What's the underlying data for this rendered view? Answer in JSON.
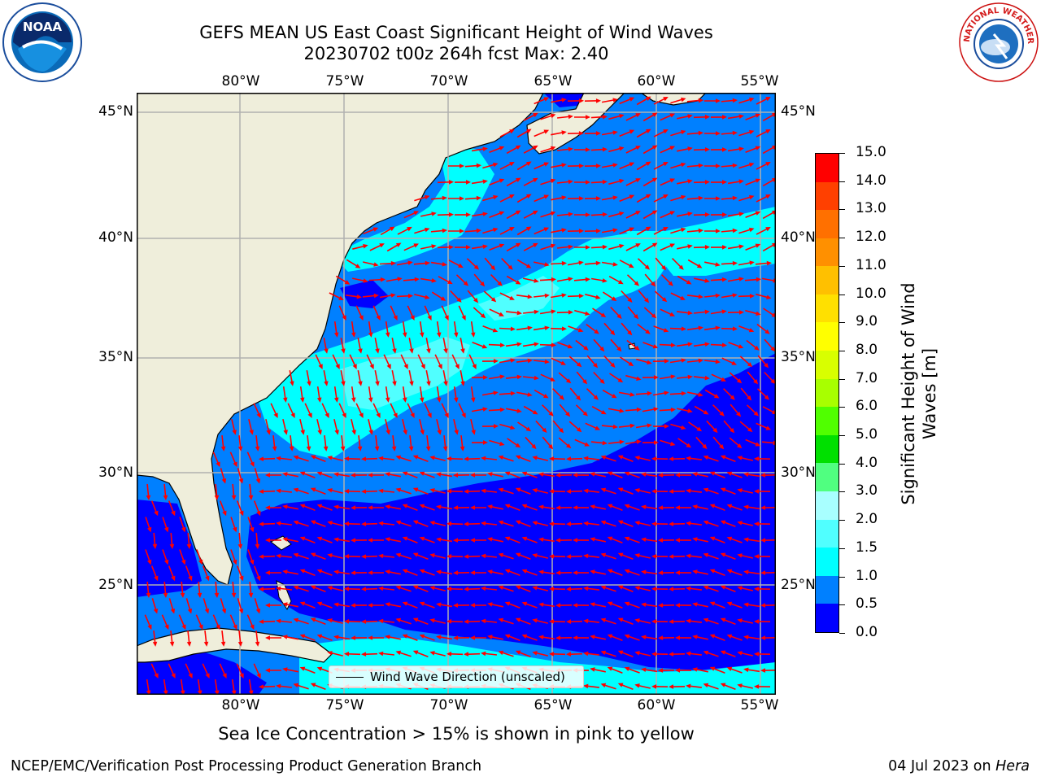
{
  "title": {
    "line1": "GEFS MEAN US East Coast Significant Height of Wind Waves",
    "line2": "20230702 t00z 264h fcst   Max: 2.40"
  },
  "axes": {
    "lon_labels": [
      "80°W",
      "75°W",
      "70°W",
      "65°W",
      "60°W",
      "55°W"
    ],
    "lat_labels": [
      "45°N",
      "40°N",
      "35°N",
      "30°N",
      "25°N"
    ]
  },
  "map_extent": {
    "lon_min": -85,
    "lon_max": -54.3,
    "lat_min": 20,
    "lat_max": 45.8
  },
  "colorbar": {
    "label": "Significant Height of Wind Waves [m]",
    "ticks": [
      "0.0",
      "0.5",
      "1.0",
      "1.5",
      "2.0",
      "3.0",
      "4.0",
      "5.0",
      "6.0",
      "7.0",
      "8.0",
      "9.0",
      "10.0",
      "11.0",
      "12.0",
      "13.0",
      "14.0",
      "15.0"
    ],
    "colors": [
      "#0000ff",
      "#0080ff",
      "#00ffff",
      "#50ffff",
      "#a8ffff",
      "#50ff80",
      "#00e000",
      "#50ff00",
      "#a8ff00",
      "#d8ff00",
      "#ffff00",
      "#ffe000",
      "#ffc000",
      "#ff9000",
      "#ff7000",
      "#ff4000",
      "#ff0000"
    ]
  },
  "legend": {
    "label": "Wind Wave Direction (unscaled)"
  },
  "note": "Sea Ice Concentration > 15% is shown in pink to yellow",
  "footer": {
    "left": "NCEP/EMC/Verification Post Processing Product Generation Branch",
    "date": "04 Jul 2023 on ",
    "machine": "Hera"
  },
  "logos": {
    "noaa": "NOAA",
    "nws": "NATIONAL WEATHER SERVICE"
  },
  "colors": {
    "land": "#efeedb",
    "arrow": "#ff0000",
    "grid": "#b0b0b0"
  }
}
